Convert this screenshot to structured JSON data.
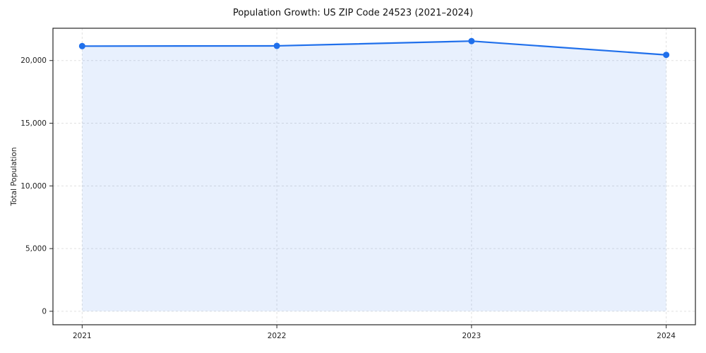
{
  "chart_data": {
    "type": "line",
    "title": "Population Growth: US ZIP Code 24523 (2021–2024)",
    "xlabel": "",
    "ylabel": "Total Population",
    "x": [
      2021,
      2022,
      2023,
      2024
    ],
    "series": [
      {
        "name": "Total Population",
        "values": [
          21150,
          21170,
          21550,
          20450
        ]
      }
    ],
    "yticks": [
      0,
      5000,
      10000,
      15000,
      20000
    ],
    "ytick_labels": [
      "0",
      "5,000",
      "10,000",
      "15,000",
      "20,000"
    ],
    "xtick_labels": [
      "2021",
      "2022",
      "2023",
      "2024"
    ],
    "ylim": [
      -1075,
      22575
    ],
    "xlim": [
      2020.85,
      2024.15
    ],
    "grid": true,
    "grid_style": "dashed",
    "legend_position": "none",
    "line_color": "#1f6feb",
    "marker": "circle",
    "fill_under_line": true,
    "fill_color": "#1f6feb",
    "fill_opacity": 0.1,
    "grid_color": "#e0e0e0",
    "spine_color": "#262626",
    "background_color": "#ffffff"
  }
}
